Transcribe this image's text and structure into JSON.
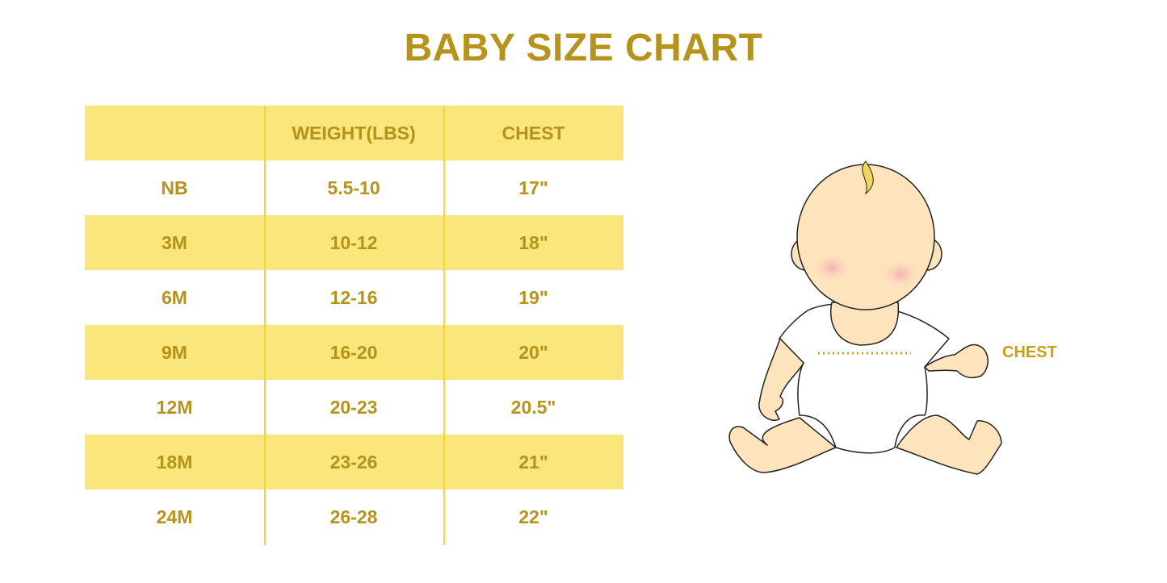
{
  "title": "BABY SIZE CHART",
  "table": {
    "headers": [
      "",
      "WEIGHT(LBS)",
      "CHEST"
    ],
    "rows": [
      [
        "NB",
        "5.5-10",
        "17\""
      ],
      [
        "3M",
        "10-12",
        "18\""
      ],
      [
        "6M",
        "12-16",
        "19\""
      ],
      [
        "9M",
        "16-20",
        "20\""
      ],
      [
        "12M",
        "20-23",
        "20.5\""
      ],
      [
        "18M",
        "23-26",
        "21\""
      ],
      [
        "24M",
        "26-28",
        "22\""
      ]
    ]
  },
  "illustration": {
    "chest_label": "CHEST"
  },
  "colors": {
    "text": "#b5931c",
    "band": "#fae67a",
    "divider": "#f6d33a",
    "skin": "#fde4bd"
  }
}
